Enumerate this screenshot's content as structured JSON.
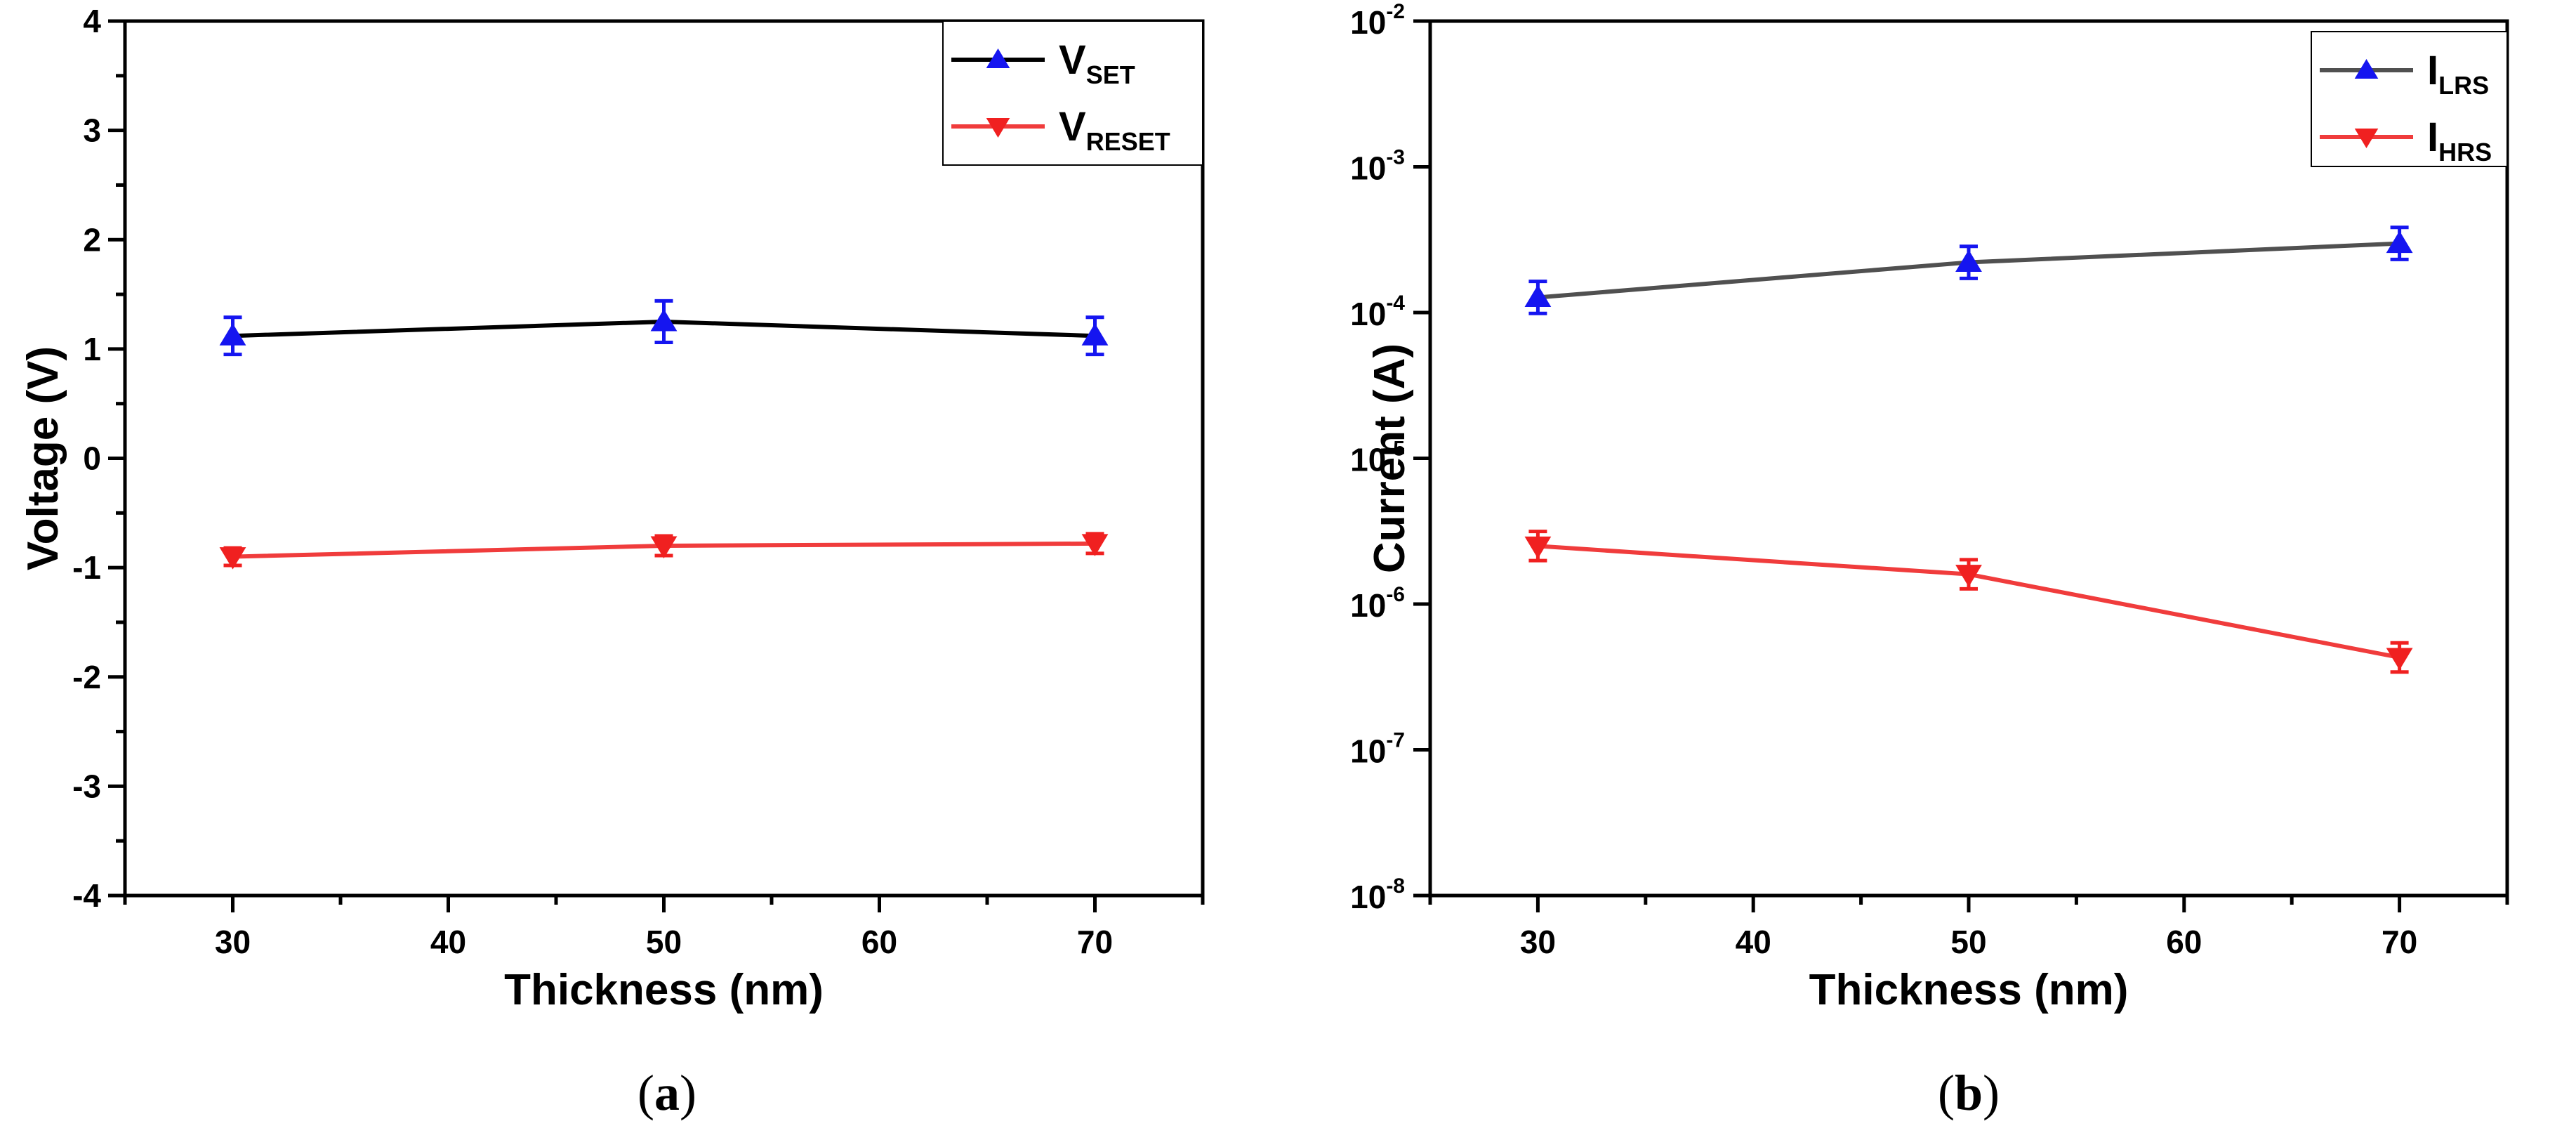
{
  "colors": {
    "set_series": "#000000",
    "reset_series": "#f03c3c",
    "lrs_series": "#505050",
    "hrs_series": "#f03c3c",
    "marker_up": "#1515f0",
    "marker_down": "#f02020"
  },
  "chart_data": [
    {
      "panel": "a",
      "type": "line",
      "xlabel": "Thickness (nm)",
      "ylabel": "Voltage (V)",
      "xlim": [
        25,
        75
      ],
      "ylim": [
        -4,
        4
      ],
      "xticks": [
        "30",
        "40",
        "50",
        "60",
        "70"
      ],
      "yticks": [
        "-4",
        "-3",
        "-2",
        "-1",
        "0",
        "1",
        "2",
        "3",
        "4"
      ],
      "yscale": "linear",
      "grid": false,
      "legend_position": "top-right",
      "x": [
        30,
        50,
        70
      ],
      "series": [
        {
          "name_main": "V",
          "name_sub": "SET",
          "values": [
            1.12,
            1.25,
            1.12
          ],
          "errors": [
            0.17,
            0.19,
            0.17
          ],
          "marker": "triangle-up",
          "line_color": "#000000",
          "marker_color": "#1515f0"
        },
        {
          "name_main": "V",
          "name_sub": "RESET",
          "values": [
            -0.9,
            -0.8,
            -0.78
          ],
          "errors": [
            0.08,
            0.09,
            0.09
          ],
          "marker": "triangle-down",
          "line_color": "#f03c3c",
          "marker_color": "#f02020"
        }
      ]
    },
    {
      "panel": "b",
      "type": "line",
      "xlabel": "Thickness (nm)",
      "ylabel": "Current (A)",
      "xlim": [
        25,
        75
      ],
      "ylim": [
        1e-08,
        0.01
      ],
      "xticks": [
        "30",
        "40",
        "50",
        "60",
        "70"
      ],
      "yticks": [
        {
          "base": "10",
          "exp": "-8"
        },
        {
          "base": "10",
          "exp": "-7"
        },
        {
          "base": "10",
          "exp": "-6"
        },
        {
          "base": "10",
          "exp": "-5"
        },
        {
          "base": "10",
          "exp": "-4"
        },
        {
          "base": "10",
          "exp": "-3"
        },
        {
          "base": "10",
          "exp": "-2"
        }
      ],
      "yscale": "log",
      "grid": false,
      "legend_position": "top-right",
      "x": [
        30,
        50,
        70
      ],
      "series": [
        {
          "name_main": "I",
          "name_sub": "LRS",
          "values": [
            0.000127,
            0.000221,
            0.000298
          ],
          "errors_log": [
            0.11,
            0.11,
            0.11
          ],
          "marker": "triangle-up",
          "line_color": "#505050",
          "marker_color": "#1515f0"
        },
        {
          "name_main": "I",
          "name_sub": "HRS",
          "values": [
            2.5e-06,
            1.6e-06,
            4.3e-07
          ],
          "errors_log": [
            0.1,
            0.1,
            0.1
          ],
          "marker": "triangle-down",
          "line_color": "#f03c3c",
          "marker_color": "#f02020"
        }
      ]
    }
  ],
  "captions": [
    {
      "open": "(",
      "letter": "a",
      "close": ")"
    },
    {
      "open": "(",
      "letter": "b",
      "close": ")"
    }
  ]
}
